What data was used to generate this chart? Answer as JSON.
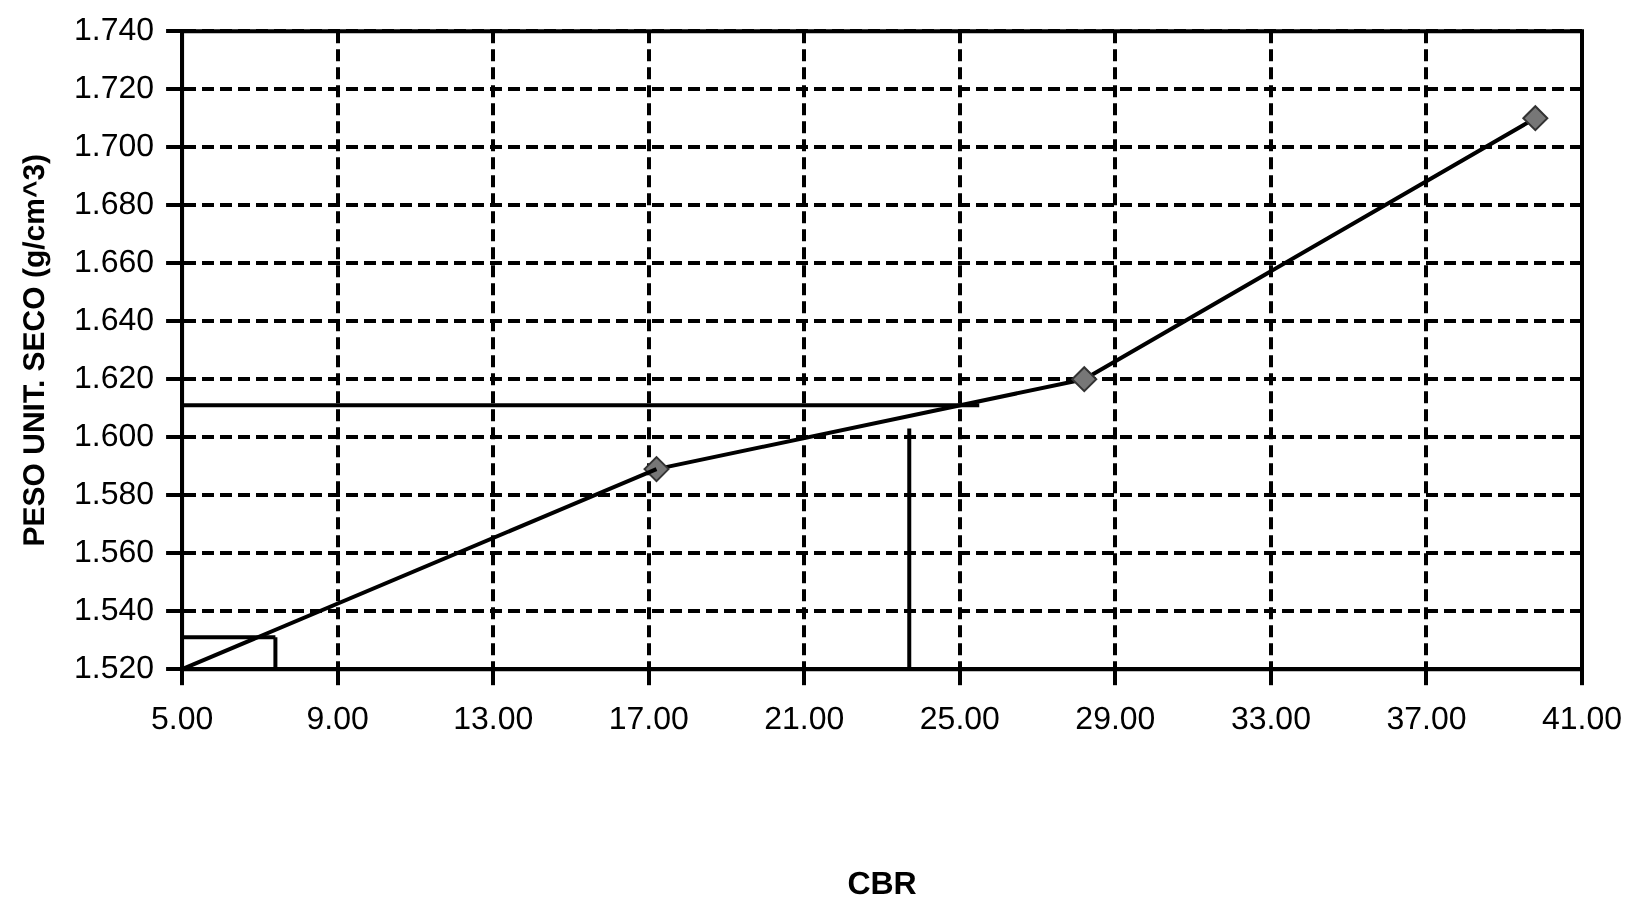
{
  "chart_data": {
    "type": "line",
    "xlabel": "CBR",
    "ylabel": "PESO UNIT. SECO (g/cm^3)",
    "xlim": [
      5,
      41
    ],
    "xticks": [
      {
        "value": 5,
        "label": "5.00"
      },
      {
        "value": 9,
        "label": "9.00"
      },
      {
        "value": 13,
        "label": "13.00"
      },
      {
        "value": 17,
        "label": "17.00"
      },
      {
        "value": 21,
        "label": "21.00"
      },
      {
        "value": 25,
        "label": "25.00"
      },
      {
        "value": 29,
        "label": "29.00"
      },
      {
        "value": 33,
        "label": "33.00"
      },
      {
        "value": 37,
        "label": "37.00"
      },
      {
        "value": 41,
        "label": "41.00"
      }
    ],
    "ylim": [
      1.52,
      1.74
    ],
    "yticks": [
      {
        "value": 1.52,
        "label": "1.520"
      },
      {
        "value": 1.54,
        "label": "1.540"
      },
      {
        "value": 1.56,
        "label": "1.560"
      },
      {
        "value": 1.58,
        "label": "1.580"
      },
      {
        "value": 1.6,
        "label": "1.600"
      },
      {
        "value": 1.62,
        "label": "1.620"
      },
      {
        "value": 1.64,
        "label": "1.640"
      },
      {
        "value": 1.66,
        "label": "1.660"
      },
      {
        "value": 1.68,
        "label": "1.680"
      },
      {
        "value": 1.7,
        "label": "1.700"
      },
      {
        "value": 1.72,
        "label": "1.720"
      },
      {
        "value": 1.74,
        "label": "1.740"
      }
    ],
    "grid": true,
    "legend": false,
    "line_style": "solid",
    "series": [
      {
        "type": "line",
        "color": "#000000",
        "x": [
          5,
          17.2
        ],
        "values": [
          1.52,
          1.589
        ]
      },
      {
        "type": "line",
        "color": "#000000",
        "x": [
          17.2,
          28.2,
          39.8
        ],
        "values": [
          1.589,
          1.62,
          1.71
        ],
        "marker": "diamond"
      },
      {
        "type": "line",
        "color": "#000000",
        "x": [
          5,
          25.5
        ],
        "values": [
          1.611,
          1.611
        ],
        "marker": "none"
      },
      {
        "type": "line",
        "color": "#000000",
        "x": [
          23.7,
          23.7
        ],
        "values": [
          1.52,
          1.603
        ],
        "marker": "none"
      },
      {
        "type": "line",
        "color": "#000000",
        "x": [
          5,
          7.4
        ],
        "values": [
          1.531,
          1.531
        ],
        "marker": "none"
      },
      {
        "type": "line",
        "color": "#000000",
        "x": [
          7.4,
          7.4
        ],
        "values": [
          1.52,
          1.531
        ],
        "marker": "none"
      }
    ]
  }
}
